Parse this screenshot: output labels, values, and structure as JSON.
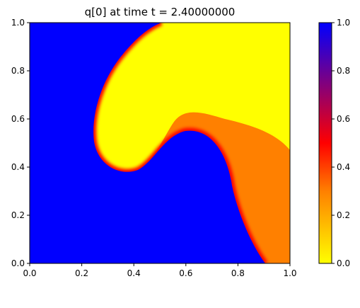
{
  "chart_data": {
    "type": "heatmap",
    "title": "q[0] at time t =     2.40000000",
    "xlim": [
      0.0,
      1.0
    ],
    "ylim": [
      0.0,
      1.0
    ],
    "xticks": [
      "0.0",
      "0.2",
      "0.4",
      "0.6",
      "0.8",
      "1.0"
    ],
    "yticks": [
      "0.0",
      "0.2",
      "0.4",
      "0.6",
      "0.8",
      "1.0"
    ],
    "colorbar": {
      "range": [
        0.0,
        1.0
      ],
      "ticks": [
        "0.0",
        "0.2",
        "0.4",
        "0.6",
        "0.8",
        "1.0"
      ],
      "colormap": [
        {
          "value": 0.0,
          "color": "#ffff00"
        },
        {
          "value": 0.3,
          "color": "#ff8000"
        },
        {
          "value": 0.5,
          "color": "#ff0000"
        },
        {
          "value": 1.0,
          "color": "#0000ff"
        }
      ]
    },
    "regions": [
      {
        "value": 1.0,
        "color": "#0000ff"
      },
      {
        "value": 0.3,
        "color": "#ff8000"
      },
      {
        "value": 0.0,
        "color": "#ffff00"
      }
    ],
    "grid": false
  }
}
